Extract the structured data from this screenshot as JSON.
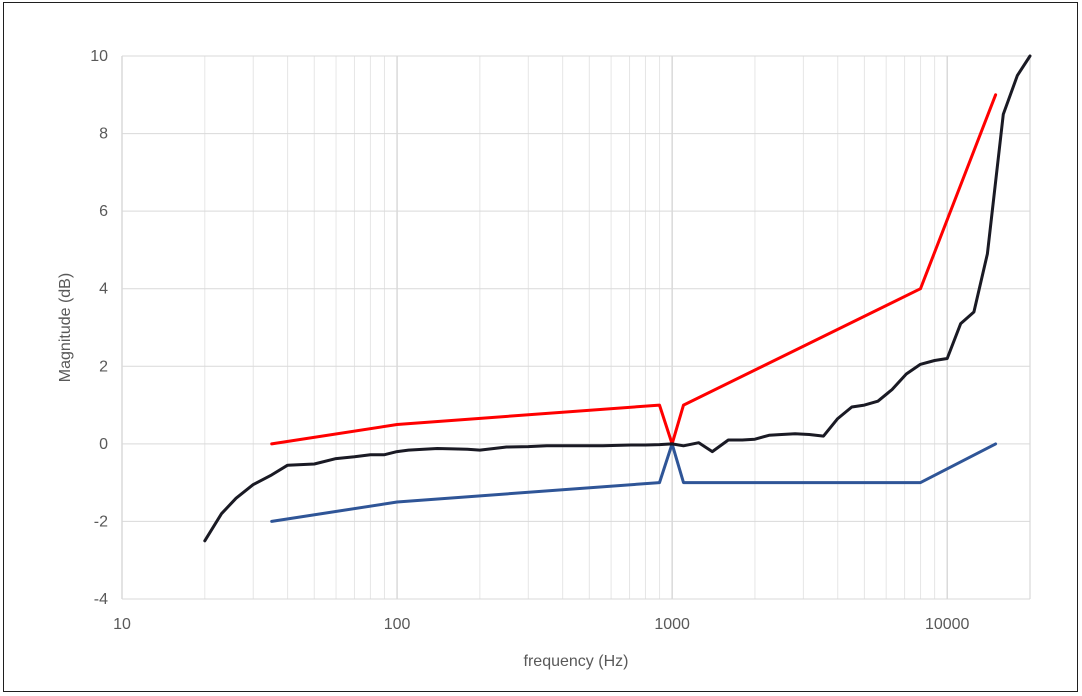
{
  "chart_data": {
    "type": "line",
    "title": "",
    "xlabel": "frequency (Hz)",
    "ylabel": "Magnitude (dB)",
    "x_scale": "log",
    "xlim": [
      10,
      20000
    ],
    "ylim": [
      -4,
      10
    ],
    "x_ticks": [
      10,
      100,
      1000,
      10000
    ],
    "x_tick_labels": [
      "10",
      "100",
      "1000",
      "10000"
    ],
    "y_ticks": [
      -4,
      -2,
      0,
      2,
      4,
      6,
      8,
      10
    ],
    "y_tick_labels": [
      "-4",
      "-2",
      "0",
      "2",
      "4",
      "6",
      "8",
      "10"
    ],
    "grid": true,
    "legend": "none",
    "series": [
      {
        "color": "#ff0000",
        "x": [
          35,
          100,
          900,
          1000,
          1100,
          8000,
          15000
        ],
        "y": [
          0,
          0.5,
          1,
          0,
          1,
          4,
          9
        ]
      },
      {
        "color": "#2f5597",
        "x": [
          35,
          100,
          900,
          1000,
          1100,
          8000,
          15000
        ],
        "y": [
          -2,
          -1.5,
          -1,
          0,
          -1,
          -1,
          0
        ]
      },
      {
        "color": "#1a1a24",
        "x": [
          20,
          23,
          26,
          30,
          35,
          40,
          50,
          60,
          70,
          80,
          90,
          100,
          110,
          125,
          140,
          160,
          180,
          200,
          225,
          250,
          300,
          350,
          400,
          450,
          500,
          560,
          630,
          710,
          800,
          900,
          1000,
          1100,
          1250,
          1400,
          1600,
          1800,
          2000,
          2250,
          2500,
          2800,
          3150,
          3550,
          4000,
          4500,
          5000,
          5600,
          6300,
          7100,
          8000,
          9000,
          10000,
          11200,
          12500,
          14000,
          16000,
          18000,
          20000
        ],
        "y": [
          -2.5,
          -1.8,
          -1.4,
          -1.05,
          -0.8,
          -0.55,
          -0.52,
          -0.38,
          -0.33,
          -0.28,
          -0.28,
          -0.2,
          -0.16,
          -0.14,
          -0.12,
          -0.13,
          -0.14,
          -0.16,
          -0.12,
          -0.08,
          -0.07,
          -0.05,
          -0.05,
          -0.05,
          -0.05,
          -0.05,
          -0.04,
          -0.03,
          -0.03,
          -0.02,
          0,
          -0.05,
          0.03,
          -0.2,
          0.1,
          0.1,
          0.12,
          0.22,
          0.24,
          0.26,
          0.24,
          0.2,
          0.65,
          0.95,
          1.0,
          1.1,
          1.4,
          1.8,
          2.05,
          2.15,
          2.2,
          3.1,
          3.4,
          4.9,
          8.5,
          9.5,
          10
        ]
      }
    ]
  }
}
